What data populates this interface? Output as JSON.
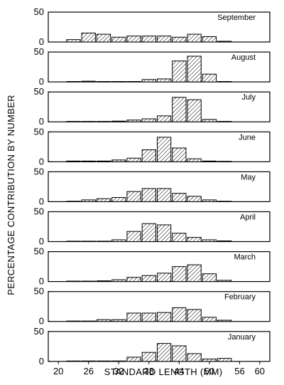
{
  "chart_data": {
    "type": "bar",
    "xlabel": "STANDARD LENGTH (MM)",
    "ylabel": "PERCENTAGE CONTRIBUTION BY NUMBER",
    "xlim": [
      18,
      62
    ],
    "ylim": [
      0,
      50
    ],
    "x_ticks": [
      "20",
      "26",
      "32",
      "38",
      "44",
      "50",
      "56",
      "60"
    ],
    "y_ticks": [
      "0",
      "50"
    ],
    "bin_centers": [
      23,
      26,
      29,
      32,
      35,
      38,
      41,
      44,
      47,
      50,
      53
    ],
    "bin_width": 3,
    "panels": [
      {
        "month": "September",
        "values": [
          4,
          15,
          13,
          8,
          10,
          10,
          10,
          8,
          13,
          9,
          1
        ]
      },
      {
        "month": "August",
        "values": [
          0,
          1,
          0,
          0,
          0,
          4,
          5,
          35,
          43,
          13,
          0
        ]
      },
      {
        "month": "July",
        "values": [
          0,
          0,
          0,
          1,
          3,
          5,
          10,
          41,
          37,
          4,
          0
        ]
      },
      {
        "month": "June",
        "values": [
          1,
          1,
          1,
          3,
          6,
          20,
          41,
          23,
          5,
          1,
          0
        ]
      },
      {
        "month": "May",
        "values": [
          0,
          3,
          5,
          7,
          17,
          22,
          22,
          14,
          9,
          3,
          0
        ]
      },
      {
        "month": "April",
        "values": [
          0,
          0,
          0,
          3,
          17,
          30,
          28,
          14,
          7,
          3,
          1
        ]
      },
      {
        "month": "March",
        "values": [
          0,
          0,
          1,
          3,
          7,
          10,
          14,
          25,
          28,
          13,
          2
        ]
      },
      {
        "month": "February",
        "values": [
          0,
          0,
          3,
          3,
          14,
          14,
          15,
          23,
          20,
          7,
          2
        ]
      },
      {
        "month": "January",
        "values": [
          0,
          0,
          0,
          0,
          7,
          15,
          30,
          26,
          13,
          4,
          5
        ]
      }
    ]
  }
}
